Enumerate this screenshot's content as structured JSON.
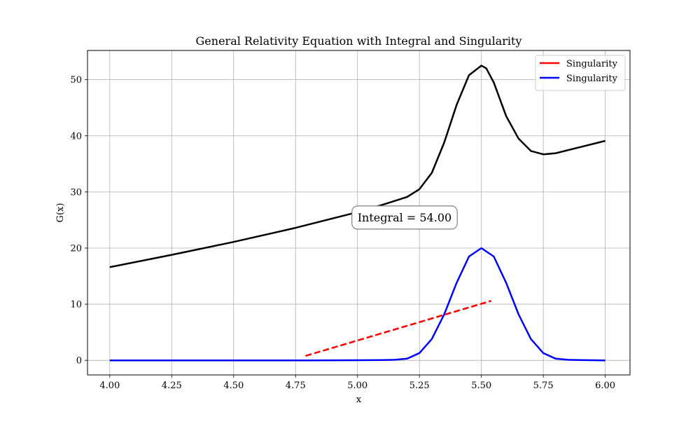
{
  "chart_data": {
    "type": "line",
    "title": "General Relativity Equation with Integral and Singularity",
    "xlabel": "x",
    "ylabel": "G(x)",
    "xlim": [
      3.91,
      6.1
    ],
    "ylim": [
      -2.6,
      55.2
    ],
    "xticks": [
      4.0,
      4.25,
      4.5,
      4.75,
      5.0,
      5.25,
      5.5,
      5.75,
      6.0
    ],
    "xtick_labels": [
      "4.00",
      "4.25",
      "4.50",
      "4.75",
      "5.00",
      "5.25",
      "5.50",
      "5.75",
      "6.00"
    ],
    "yticks": [
      0,
      10,
      20,
      30,
      40,
      50
    ],
    "ytick_labels": [
      "0",
      "10",
      "20",
      "30",
      "40",
      "50"
    ],
    "grid": true,
    "legend_position": "top-right",
    "series": [
      {
        "name": "",
        "color": "#000000",
        "style": "solid",
        "in_legend": false,
        "x": [
          4.0,
          4.25,
          4.5,
          4.75,
          5.0,
          5.1,
          5.2,
          5.25,
          5.3,
          5.35,
          5.4,
          5.45,
          5.5,
          5.52,
          5.55,
          5.6,
          5.65,
          5.7,
          5.75,
          5.8,
          5.9,
          6.0
        ],
        "y": [
          16.6,
          18.8,
          21.1,
          23.6,
          26.4,
          27.7,
          29.1,
          30.5,
          33.4,
          38.8,
          45.5,
          50.8,
          52.5,
          52.0,
          49.5,
          43.5,
          39.5,
          37.3,
          36.7,
          36.9,
          38.0,
          39.1
        ]
      },
      {
        "name": "Singularity",
        "color": "#ff0000",
        "style": "dashed",
        "in_legend": true,
        "x": [
          4.79,
          5.54
        ],
        "y": [
          0.8,
          10.6
        ]
      },
      {
        "name": "Singularity",
        "color": "#0000ff",
        "style": "solid",
        "in_legend": true,
        "x": [
          4.0,
          4.8,
          5.1,
          5.15,
          5.2,
          5.25,
          5.3,
          5.35,
          5.4,
          5.45,
          5.5,
          5.55,
          5.6,
          5.65,
          5.7,
          5.75,
          5.8,
          5.85,
          5.9,
          6.0
        ],
        "y": [
          0,
          0,
          0.05,
          0.1,
          0.3,
          1.3,
          3.8,
          8.2,
          13.8,
          18.5,
          20.0,
          18.5,
          13.8,
          8.2,
          3.8,
          1.3,
          0.3,
          0.1,
          0.05,
          0
        ]
      }
    ],
    "annotation": {
      "text": "Integral = 54.00",
      "x": 5.0,
      "y": 25.5
    }
  }
}
